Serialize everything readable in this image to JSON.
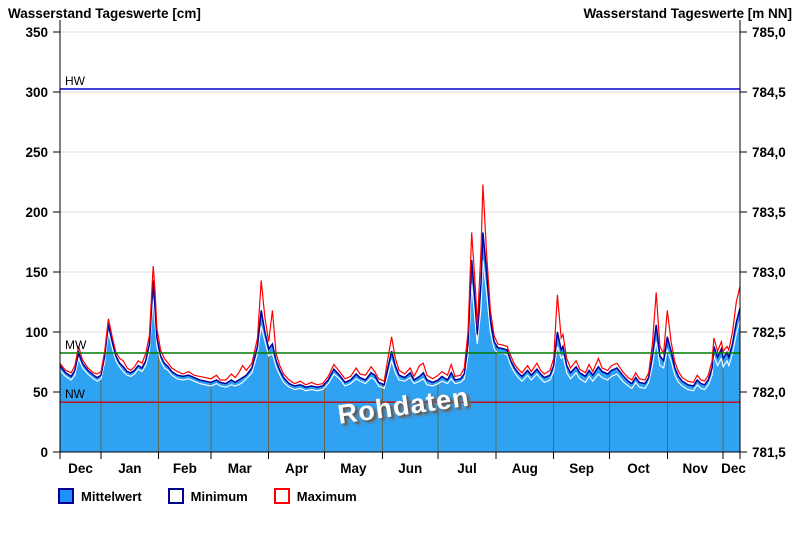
{
  "header": {
    "title_left": "Wasserstand Tageswerte [cm]",
    "title_right": "Wasserstand Tageswerte [m NN]"
  },
  "watermark": "Rohdaten",
  "legend": {
    "items": [
      {
        "label": "Mittelwert",
        "fill": "#1E90FF",
        "border": "#00008B"
      },
      {
        "label": "Minimum",
        "fill": "#FFFFFF",
        "border": "#00008B"
      },
      {
        "label": "Maximum",
        "fill": "#FFFFFF",
        "border": "#FF0000"
      }
    ]
  },
  "chart_data": {
    "type": "area",
    "title": "Wasserstand Tageswerte",
    "xlabel": "",
    "ylabel_left": "Wasserstand [cm]",
    "ylabel_right": "Wasserstand [m NN]",
    "ylim": [
      0,
      350
    ],
    "ylim_right": [
      781.5,
      785.0
    ],
    "grid": true,
    "legend_position": "bottom-left",
    "x_month_labels": [
      "Dec",
      "Jan",
      "Feb",
      "Mar",
      "Apr",
      "May",
      "Jun",
      "Jul",
      "Aug",
      "Sep",
      "Oct",
      "Nov",
      "Dec"
    ],
    "x_month_label_days": [
      11,
      37.5,
      67,
      96.5,
      127,
      157.5,
      188,
      218.5,
      249.5,
      280,
      310.5,
      341,
      361.5
    ],
    "month_boundaries_days": [
      22,
      53,
      81,
      112,
      142,
      173,
      203,
      234,
      265,
      295,
      326,
      356
    ],
    "x_total_days": 365,
    "y_left_ticks": [
      0,
      50,
      100,
      150,
      200,
      250,
      300,
      350
    ],
    "y_right_ticks_cm": [
      0,
      50,
      100,
      150,
      200,
      250,
      300,
      350
    ],
    "y_right_tick_labels": [
      "781,5",
      "782,0",
      "782,5",
      "783,0",
      "783,5",
      "784,0",
      "784,5",
      "785,0"
    ],
    "reference_lines": [
      {
        "name": "HW",
        "value_cm": 302.5,
        "color": "#0000C8"
      },
      {
        "name": "MW",
        "value_cm": 82.5,
        "color": "#007A00"
      },
      {
        "name": "NW",
        "value_cm": 41.5,
        "color": "#D00000"
      }
    ],
    "colors": {
      "area_fill": "#2FA2F2",
      "mean_line": "#0000A0",
      "min_line": "#FFFFFF",
      "max_line": "#FF0000",
      "grid_h": "#DCDCDC",
      "month_line": "#5A6A5A",
      "axis": "#000000"
    },
    "days": [
      0,
      3,
      6,
      8,
      10,
      12,
      15,
      18,
      20,
      22,
      24,
      26,
      28,
      30,
      32,
      34,
      36,
      38,
      40,
      42,
      44,
      46,
      48,
      50,
      51,
      52,
      54,
      56,
      58,
      60,
      63,
      66,
      69,
      72,
      75,
      78,
      81,
      84,
      86,
      89,
      92,
      94,
      96,
      98,
      100,
      103,
      106,
      108,
      110,
      112,
      114,
      116,
      118,
      120,
      123,
      126,
      129,
      132,
      135,
      138,
      141,
      144,
      147,
      150,
      153,
      156,
      159,
      161,
      164,
      167,
      169,
      171,
      174,
      176,
      178,
      180,
      182,
      185,
      188,
      190,
      193,
      195,
      197,
      200,
      203,
      205,
      208,
      210,
      212,
      215,
      217,
      219,
      221,
      223,
      224,
      226,
      227,
      229,
      231,
      233,
      235,
      238,
      240,
      242,
      244,
      246,
      248,
      251,
      253,
      256,
      258,
      260,
      263,
      265,
      267,
      269,
      270,
      272,
      274,
      277,
      279,
      282,
      284,
      286,
      289,
      291,
      294,
      296,
      299,
      302,
      305,
      307,
      309,
      311,
      314,
      316,
      318,
      320,
      322,
      324,
      326,
      328,
      330,
      332,
      334,
      337,
      340,
      342,
      344,
      346,
      348,
      350,
      351,
      353,
      355,
      356,
      358,
      359,
      361,
      363,
      365
    ],
    "series": [
      {
        "name": "Mittelwert",
        "values": [
          72,
          66,
          63,
          68,
          83,
          74,
          68,
          64,
          62,
          64,
          80,
          107,
          92,
          80,
          74,
          71,
          67,
          66,
          68,
          72,
          70,
          76,
          90,
          143,
          120,
          95,
          80,
          74,
          71,
          67,
          64,
          63,
          64,
          62,
          60,
          59,
          58,
          60,
          58,
          57,
          60,
          58,
          60,
          62,
          64,
          70,
          88,
          118,
          100,
          86,
          90,
          76,
          68,
          62,
          57,
          55,
          56,
          54,
          55,
          54,
          55,
          60,
          69,
          64,
          58,
          60,
          65,
          62,
          60,
          66,
          64,
          58,
          56,
          70,
          84,
          72,
          64,
          62,
          66,
          60,
          63,
          66,
          60,
          58,
          60,
          63,
          60,
          66,
          60,
          61,
          65,
          90,
          160,
          120,
          98,
          140,
          183,
          150,
          110,
          92,
          87,
          86,
          85,
          76,
          70,
          66,
          63,
          68,
          64,
          69,
          65,
          62,
          64,
          72,
          100,
          85,
          88,
          72,
          66,
          71,
          66,
          63,
          68,
          64,
          71,
          67,
          65,
          68,
          70,
          64,
          59,
          57,
          62,
          58,
          57,
          62,
          80,
          106,
          80,
          76,
          96,
          84,
          70,
          63,
          59,
          56,
          55,
          60,
          57,
          56,
          60,
          70,
          88,
          79,
          86,
          78,
          83,
          79,
          90,
          108,
          120
        ]
      },
      {
        "name": "Minimum",
        "values": [
          68,
          63,
          60,
          64,
          78,
          70,
          65,
          61,
          59,
          61,
          75,
          100,
          87,
          76,
          71,
          67,
          64,
          63,
          65,
          69,
          67,
          72,
          84,
          128,
          108,
          88,
          76,
          70,
          68,
          64,
          61,
          60,
          61,
          59,
          57,
          56,
          55,
          57,
          55,
          54,
          56,
          55,
          56,
          58,
          61,
          66,
          82,
          105,
          92,
          80,
          82,
          71,
          64,
          58,
          54,
          52,
          53,
          51,
          52,
          51,
          52,
          57,
          65,
          61,
          55,
          57,
          61,
          59,
          57,
          62,
          60,
          55,
          53,
          64,
          76,
          66,
          60,
          59,
          62,
          57,
          59,
          61,
          56,
          55,
          57,
          59,
          57,
          61,
          57,
          58,
          61,
          80,
          140,
          105,
          90,
          120,
          160,
          132,
          100,
          86,
          82,
          82,
          81,
          72,
          66,
          62,
          59,
          64,
          60,
          65,
          61,
          58,
          60,
          67,
          88,
          78,
          80,
          66,
          61,
          66,
          61,
          58,
          63,
          59,
          65,
          62,
          60,
          63,
          65,
          59,
          55,
          53,
          58,
          54,
          53,
          58,
          72,
          92,
          72,
          70,
          85,
          76,
          64,
          58,
          55,
          52,
          51,
          56,
          53,
          52,
          56,
          64,
          80,
          72,
          78,
          71,
          76,
          72,
          82,
          98,
          110
        ]
      },
      {
        "name": "Maximum",
        "values": [
          74,
          68,
          66,
          72,
          88,
          77,
          70,
          66,
          65,
          67,
          84,
          111,
          96,
          83,
          78,
          76,
          70,
          68,
          71,
          76,
          74,
          82,
          97,
          155,
          135,
          103,
          85,
          78,
          74,
          70,
          67,
          65,
          67,
          64,
          63,
          62,
          61,
          64,
          60,
          60,
          65,
          62,
          66,
          72,
          68,
          74,
          95,
          143,
          112,
          92,
          118,
          82,
          72,
          65,
          60,
          57,
          59,
          56,
          58,
          56,
          57,
          63,
          73,
          67,
          61,
          63,
          70,
          65,
          64,
          71,
          67,
          61,
          59,
          78,
          96,
          78,
          68,
          65,
          70,
          63,
          72,
          74,
          64,
          61,
          64,
          67,
          64,
          73,
          63,
          64,
          70,
          100,
          183,
          135,
          105,
          168,
          223,
          165,
          118,
          97,
          90,
          89,
          88,
          80,
          73,
          69,
          66,
          72,
          67,
          74,
          68,
          65,
          68,
          78,
          131,
          95,
          98,
          78,
          70,
          76,
          69,
          66,
          73,
          67,
          78,
          70,
          68,
          72,
          74,
          67,
          62,
          60,
          66,
          61,
          60,
          66,
          90,
          133,
          88,
          82,
          118,
          92,
          75,
          67,
          62,
          59,
          58,
          64,
          60,
          59,
          64,
          76,
          95,
          84,
          92,
          84,
          88,
          85,
          100,
          125,
          138
        ]
      }
    ]
  }
}
